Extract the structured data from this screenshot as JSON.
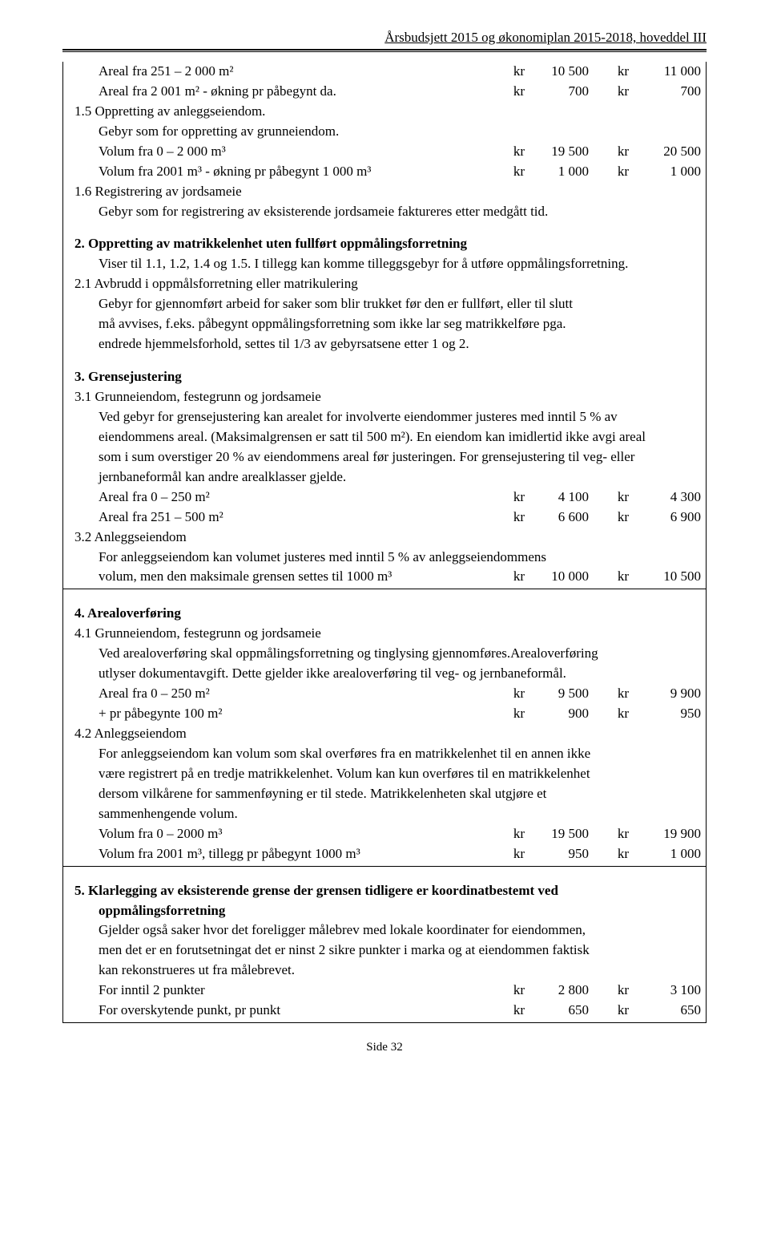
{
  "header": {
    "title": "Årsbudsjett 2015 og økonomiplan 2015-2018, hoveddel III"
  },
  "rows": [
    {
      "type": "row",
      "indent": 1,
      "desc": "Areal fra 251 – 2 000 m²",
      "c1": "kr",
      "v1": "10 500",
      "c2": "kr",
      "v2": "11 000"
    },
    {
      "type": "row",
      "indent": 1,
      "desc": "Areal fra 2 001 m² - økning pr påbegynt da.",
      "c1": "kr",
      "v1": "700",
      "c2": "kr",
      "v2": "700"
    },
    {
      "type": "full",
      "indent": 0,
      "text": "1.5 Oppretting av anleggseiendom."
    },
    {
      "type": "full",
      "indent": 1,
      "text": "Gebyr som for oppretting av grunneiendom."
    },
    {
      "type": "row",
      "indent": 1,
      "desc": "Volum fra 0 – 2 000 m³",
      "c1": "kr",
      "v1": "19 500",
      "c2": "kr",
      "v2": "20 500"
    },
    {
      "type": "row",
      "indent": 1,
      "desc": "Volum fra  2001 m³ - økning pr påbegynt  1 000 m³",
      "c1": "kr",
      "v1": "1 000",
      "c2": "kr",
      "v2": "1 000"
    },
    {
      "type": "full",
      "indent": 0,
      "text": "1.6 Registrering av jordsameie"
    },
    {
      "type": "full",
      "indent": 1,
      "text": "Gebyr som for registrering av eksisterende jordsameie faktureres etter medgått tid."
    },
    {
      "type": "gap"
    },
    {
      "type": "full",
      "indent": 0,
      "bold": true,
      "text": "2.  Oppretting av matrikkelenhet uten fullført oppmålingsforretning"
    },
    {
      "type": "full",
      "indent": 1,
      "text": "Viser til 1.1, 1.2, 1.4 og 1.5. I tillegg kan komme tilleggsgebyr for å utføre oppmålingsforretning."
    },
    {
      "type": "full",
      "indent": 0,
      "text": "2.1 Avbrudd i oppmålsforretning eller matrikulering"
    },
    {
      "type": "full",
      "indent": 1,
      "text": "Gebyr for gjennomført arbeid for saker som blir trukket før den er fullført, eller til slutt"
    },
    {
      "type": "full",
      "indent": 1,
      "text": "må avvises, f.eks. påbegynt oppmålingsforretning som ikke lar seg matrikkelføre pga."
    },
    {
      "type": "full",
      "indent": 1,
      "text": "endrede hjemmelsforhold, settes til 1/3 av gebyrsatsene etter 1 og 2."
    },
    {
      "type": "gap"
    },
    {
      "type": "full",
      "indent": 0,
      "bold": true,
      "text": "3.  Grensejustering"
    },
    {
      "type": "full",
      "indent": 0,
      "text": "3.1 Grunneiendom, festegrunn og jordsameie"
    },
    {
      "type": "full",
      "indent": 1,
      "text": "Ved gebyr for grensejustering kan arealet for involverte eiendommer justeres med  inntil 5 % av"
    },
    {
      "type": "full",
      "indent": 1,
      "text": "eiendommens areal. (Maksimalgrensen er satt til 500 m²). En eiendom  kan imidlertid ikke avgi areal"
    },
    {
      "type": "full",
      "indent": 1,
      "text": "som i sum overstiger 20 % av eiendommens areal før  justeringen. For grensejustering til veg- eller"
    },
    {
      "type": "full",
      "indent": 1,
      "text": "jernbaneformål kan andre arealklasser gjelde."
    },
    {
      "type": "row",
      "indent": 1,
      "desc": "Areal fra 0 – 250 m²",
      "c1": "kr",
      "v1": "4 100",
      "c2": "kr",
      "v2": "4 300"
    },
    {
      "type": "row",
      "indent": 1,
      "desc": "Areal fra 251 – 500 m²",
      "c1": "kr",
      "v1": "6 600",
      "c2": "kr",
      "v2": "6 900"
    },
    {
      "type": "full",
      "indent": 0,
      "text": "3.2 Anleggseiendom"
    },
    {
      "type": "full",
      "indent": 1,
      "text": "For anleggseiendom kan volumet justeres med inntil 5 % av anleggseiendommens"
    },
    {
      "type": "row",
      "indent": 1,
      "desc": "volum, men den maksimale grensen settes til 1000 m³",
      "c1": "kr",
      "v1": "10 000",
      "c2": "kr",
      "v2": "10 500"
    },
    {
      "type": "rule"
    },
    {
      "type": "gap"
    },
    {
      "type": "full",
      "indent": 0,
      "bold": true,
      "text": "4.  Arealoverføring"
    },
    {
      "type": "full",
      "indent": 0,
      "text": "4.1 Grunneiendom, festegrunn og jordsameie"
    },
    {
      "type": "full",
      "indent": 1,
      "text": "Ved arealoverføring skal oppmålingsforretning og tinglysing gjennomføres.Arealoverføring"
    },
    {
      "type": "full",
      "indent": 1,
      "text": "utlyser dokumentavgift. Dette gjelder ikke arealoverføring til veg- og jernbaneformål."
    },
    {
      "type": "row",
      "indent": 1,
      "desc": "Areal fra 0 – 250 m²",
      "c1": "kr",
      "v1": "9 500",
      "c2": "kr",
      "v2": "9 900"
    },
    {
      "type": "row",
      "indent": 1,
      "desc": "   + pr påbegynte 100 m²",
      "c1": "kr",
      "v1": "900",
      "c2": "kr",
      "v2": "950"
    },
    {
      "type": "full",
      "indent": 0,
      "text": "4.2 Anleggseiendom"
    },
    {
      "type": "full",
      "indent": 1,
      "text": "For anleggseiendom kan volum som skal overføres fra en matrikkelenhet til en annen ikke"
    },
    {
      "type": "full",
      "indent": 1,
      "text": "være registrert på en tredje matrikkelenhet. Volum kan kun overføres til en matrikkelenhet"
    },
    {
      "type": "full",
      "indent": 1,
      "text": "dersom vilkårene for sammenføyning er til stede. Matrikkelenheten skal utgjøre et"
    },
    {
      "type": "full",
      "indent": 1,
      "text": "sammenhengende volum."
    },
    {
      "type": "row",
      "indent": 1,
      "desc": "Volum fra 0 – 2000 m³",
      "c1": "kr",
      "v1": "19 500",
      "c2": "kr",
      "v2": "19 900"
    },
    {
      "type": "row",
      "indent": 1,
      "desc": "Volum fra 2001 m³, tillegg pr påbegynt 1000 m³",
      "c1": "kr",
      "v1": "950",
      "c2": "kr",
      "v2": "1 000"
    },
    {
      "type": "rule"
    },
    {
      "type": "gap"
    },
    {
      "type": "full",
      "indent": 0,
      "bold": true,
      "text": "5.  Klarlegging av eksisterende grense der grensen tidligere er koordinatbestemt ved"
    },
    {
      "type": "full",
      "indent": 1,
      "bold": true,
      "text": "oppmålingsforretning"
    },
    {
      "type": "full",
      "indent": 1,
      "text": "Gjelder også saker hvor det foreligger målebrev med lokale koordinater for eiendommen,"
    },
    {
      "type": "full",
      "indent": 1,
      "text": "men det er en forutsetningat det er ninst 2 sikre punkter i marka og at eiendommen faktisk"
    },
    {
      "type": "full",
      "indent": 1,
      "text": "kan rekonstrueres ut fra målebrevet."
    },
    {
      "type": "row",
      "indent": 1,
      "desc": "For inntil 2 punkter",
      "c1": "kr",
      "v1": "2 800",
      "c2": "kr",
      "v2": "3 100"
    },
    {
      "type": "row",
      "indent": 1,
      "desc": "For overskytende punkt, pr punkt",
      "c1": "kr",
      "v1": "650",
      "c2": "kr",
      "v2": "650"
    },
    {
      "type": "rule"
    }
  ],
  "footer": "Side 32"
}
